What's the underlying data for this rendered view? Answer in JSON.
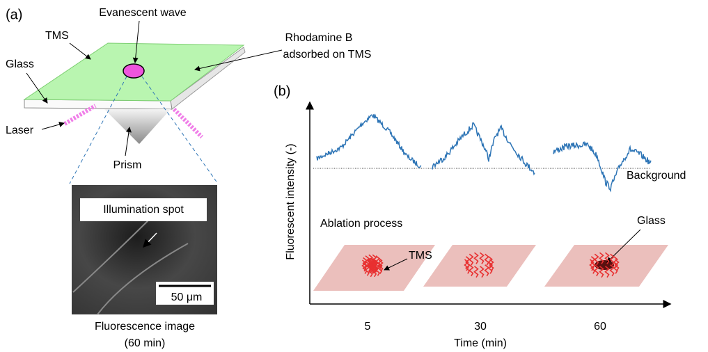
{
  "panel_a": {
    "label": "(a)",
    "evanescent": "Evanescent wave",
    "tms": "TMS",
    "rhodamine_1": "Rhodamine B",
    "rhodamine_2": "adsorbed on TMS",
    "glass": "Glass",
    "laser": "Laser",
    "prism": "Prism",
    "spot": "Illumination spot",
    "scale": "50 μm",
    "caption_1": "Fluorescence image",
    "caption_2": "(60 min)"
  },
  "panel_b": {
    "label": "(b)",
    "y_label": "Fluorescent intensity (-)",
    "background": "Background",
    "ablation": "Ablation process",
    "tms": "TMS",
    "glass": "Glass",
    "times": [
      "5",
      "30",
      "60"
    ],
    "x_label": "Time (min)"
  }
}
